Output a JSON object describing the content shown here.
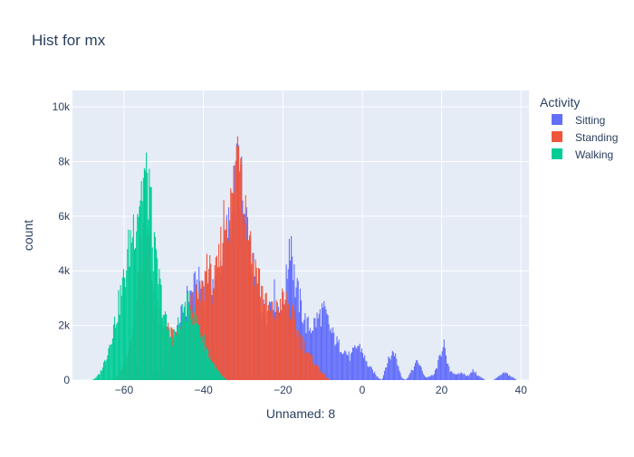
{
  "chart_data": {
    "type": "bar",
    "title": "Hist for mx",
    "xlabel": "Unnamed: 8",
    "ylabel": "count",
    "xlim": [
      -73,
      42
    ],
    "ylim": [
      0,
      10600
    ],
    "x_ticks": [
      -60,
      -40,
      -20,
      0,
      20,
      40
    ],
    "x_tick_labels": [
      "−60",
      "−40",
      "−20",
      "0",
      "20",
      "40"
    ],
    "y_ticks": [
      0,
      2000,
      4000,
      6000,
      8000,
      10000
    ],
    "y_tick_labels": [
      "0",
      "2k",
      "4k",
      "6k",
      "8k",
      "10k"
    ],
    "barmode": "overlay",
    "grid": true,
    "legend": {
      "title": "Activity",
      "position": "right"
    },
    "series": [
      {
        "name": "Sitting",
        "color": "#636efa",
        "points": [
          [
            -58,
            0
          ],
          [
            -57.5,
            400
          ],
          [
            -57,
            700
          ],
          [
            -56.5,
            500
          ],
          [
            -56,
            150
          ],
          [
            -55,
            0
          ],
          [
            -50,
            400
          ],
          [
            -48,
            1200
          ],
          [
            -46,
            2300
          ],
          [
            -44,
            3300
          ],
          [
            -42,
            3700
          ],
          [
            -40,
            3900
          ],
          [
            -39,
            3300
          ],
          [
            -38,
            4200
          ],
          [
            -37,
            3700
          ],
          [
            -36,
            4300
          ],
          [
            -35,
            5200
          ],
          [
            -34,
            5900
          ],
          [
            -33,
            6400
          ],
          [
            -32,
            7600
          ],
          [
            -31.5,
            8300
          ],
          [
            -31,
            8600
          ],
          [
            -30.5,
            7900
          ],
          [
            -30,
            6700
          ],
          [
            -29,
            5700
          ],
          [
            -28,
            4800
          ],
          [
            -27,
            3900
          ],
          [
            -26,
            3300
          ],
          [
            -25,
            2800
          ],
          [
            -24,
            2700
          ],
          [
            -23,
            3400
          ],
          [
            -22,
            3400
          ],
          [
            -21,
            2900
          ],
          [
            -20,
            3000
          ],
          [
            -19,
            4000
          ],
          [
            -18.5,
            5500
          ],
          [
            -18,
            6000
          ],
          [
            -17.5,
            5000
          ],
          [
            -17,
            3900
          ],
          [
            -16,
            3300
          ],
          [
            -15,
            2700
          ],
          [
            -14,
            2200
          ],
          [
            -13,
            2100
          ],
          [
            -12,
            2300
          ],
          [
            -11,
            2500
          ],
          [
            -10,
            2800
          ],
          [
            -9,
            2500
          ],
          [
            -8,
            2000
          ],
          [
            -7,
            1700
          ],
          [
            -6,
            1400
          ],
          [
            -5,
            1300
          ],
          [
            -4,
            1100
          ],
          [
            -3,
            900
          ],
          [
            -2,
            1200
          ],
          [
            -1,
            1400
          ],
          [
            0,
            1200
          ],
          [
            1,
            700
          ],
          [
            2,
            500
          ],
          [
            3,
            300
          ],
          [
            4,
            100
          ],
          [
            5,
            0
          ],
          [
            6,
            600
          ],
          [
            7,
            900
          ],
          [
            8,
            1200
          ],
          [
            9,
            600
          ],
          [
            10,
            100
          ],
          [
            11,
            0
          ],
          [
            13,
            500
          ],
          [
            14,
            800
          ],
          [
            15,
            400
          ],
          [
            16,
            100
          ],
          [
            18,
            200
          ],
          [
            19,
            600
          ],
          [
            20,
            1200
          ],
          [
            20.5,
            1700
          ],
          [
            21,
            900
          ],
          [
            22,
            400
          ],
          [
            23,
            300
          ],
          [
            24,
            200
          ],
          [
            25,
            300
          ],
          [
            26,
            200
          ],
          [
            27,
            200
          ],
          [
            28,
            400
          ],
          [
            29,
            200
          ],
          [
            30,
            100
          ],
          [
            31,
            0
          ],
          [
            33,
            0
          ],
          [
            34,
            100
          ],
          [
            35,
            200
          ],
          [
            36,
            300
          ],
          [
            37,
            200
          ],
          [
            38,
            100
          ],
          [
            39,
            0
          ]
        ]
      },
      {
        "name": "Standing",
        "color": "#ef553b",
        "points": [
          [
            -63,
            0
          ],
          [
            -62,
            100
          ],
          [
            -61,
            300
          ],
          [
            -60,
            600
          ],
          [
            -59,
            1000
          ],
          [
            -58,
            1600
          ],
          [
            -57,
            3200
          ],
          [
            -56,
            4700
          ],
          [
            -55.5,
            5300
          ],
          [
            -55,
            6200
          ],
          [
            -54.5,
            6000
          ],
          [
            -54,
            5500
          ],
          [
            -53.5,
            5000
          ],
          [
            -53,
            4300
          ],
          [
            -52.5,
            3500
          ],
          [
            -52,
            2900
          ],
          [
            -51,
            2300
          ],
          [
            -50,
            2200
          ],
          [
            -49,
            2000
          ],
          [
            -48,
            1800
          ],
          [
            -47,
            1700
          ],
          [
            -46,
            1800
          ],
          [
            -45,
            2100
          ],
          [
            -44,
            2600
          ],
          [
            -43,
            3000
          ],
          [
            -42,
            3200
          ],
          [
            -41,
            3300
          ],
          [
            -40,
            3600
          ],
          [
            -39,
            5000
          ],
          [
            -38,
            3800
          ],
          [
            -37,
            4000
          ],
          [
            -36,
            4700
          ],
          [
            -35,
            6300
          ],
          [
            -34,
            6700
          ],
          [
            -33,
            6900
          ],
          [
            -32,
            8300
          ],
          [
            -31.5,
            9300
          ],
          [
            -31,
            10100
          ],
          [
            -30.5,
            9500
          ],
          [
            -30,
            7800
          ],
          [
            -29,
            6400
          ],
          [
            -28,
            5200
          ],
          [
            -27,
            4600
          ],
          [
            -26,
            4100
          ],
          [
            -25,
            3500
          ],
          [
            -24,
            2900
          ],
          [
            -23,
            2700
          ],
          [
            -22,
            2700
          ],
          [
            -21,
            2900
          ],
          [
            -20,
            3200
          ],
          [
            -19,
            3100
          ],
          [
            -18,
            2800
          ],
          [
            -17,
            2300
          ],
          [
            -16,
            1800
          ],
          [
            -15,
            1500
          ],
          [
            -14,
            1200
          ],
          [
            -13,
            900
          ],
          [
            -12,
            700
          ],
          [
            -11,
            500
          ],
          [
            -10,
            300
          ],
          [
            -9,
            100
          ],
          [
            -8,
            0
          ]
        ]
      },
      {
        "name": "Walking",
        "color": "#00cc96",
        "points": [
          [
            -68,
            0
          ],
          [
            -67,
            100
          ],
          [
            -66,
            300
          ],
          [
            -65,
            700
          ],
          [
            -64,
            1200
          ],
          [
            -63,
            1900
          ],
          [
            -62,
            2500
          ],
          [
            -61,
            3300
          ],
          [
            -60,
            4000
          ],
          [
            -59,
            5000
          ],
          [
            -58,
            6000
          ],
          [
            -57,
            6600
          ],
          [
            -56,
            7500
          ],
          [
            -55.5,
            7700
          ],
          [
            -55,
            8200
          ],
          [
            -54.5,
            8100
          ],
          [
            -54,
            7500
          ],
          [
            -53.5,
            8300
          ],
          [
            -53,
            5800
          ],
          [
            -52,
            4700
          ],
          [
            -51,
            3800
          ],
          [
            -50,
            2700
          ],
          [
            -49,
            2000
          ],
          [
            -48,
            1700
          ],
          [
            -47,
            1900
          ],
          [
            -46,
            2300
          ],
          [
            -45,
            2800
          ],
          [
            -44,
            3000
          ],
          [
            -43,
            2800
          ],
          [
            -42,
            2500
          ],
          [
            -41,
            2100
          ],
          [
            -40,
            1600
          ],
          [
            -39,
            1200
          ],
          [
            -38,
            800
          ],
          [
            -37,
            500
          ],
          [
            -36,
            300
          ],
          [
            -35,
            100
          ],
          [
            -34,
            0
          ]
        ]
      }
    ]
  }
}
